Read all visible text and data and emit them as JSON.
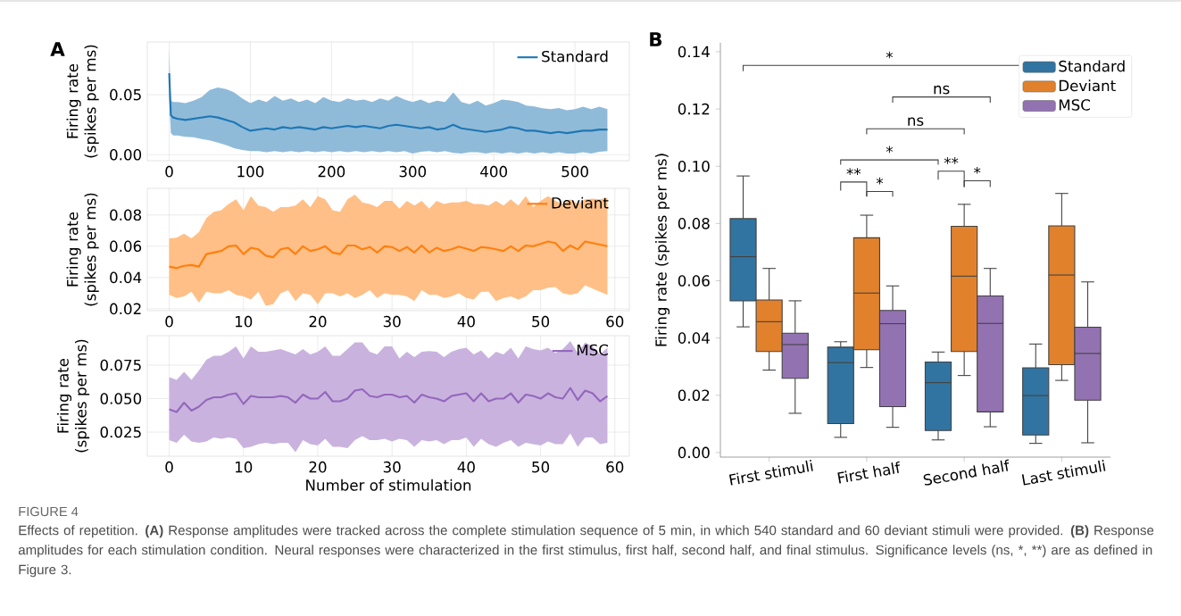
{
  "chart_data": [
    {
      "type": "line",
      "annotations": [
        "A"
      ],
      "ylabel": "Firing rate (spikes per ms)",
      "grid": true,
      "legend": "top right",
      "xlim": [
        -27,
        567
      ],
      "ylim": [
        -0.005,
        0.094
      ],
      "xticks": [
        0,
        100,
        200,
        300,
        400,
        500
      ],
      "yticks": [
        {
          "value": 0,
          "label": "0.00"
        },
        0.05
      ],
      "x": [
        0,
        2,
        5,
        10,
        20,
        30,
        40,
        50,
        60,
        70,
        80,
        90,
        100,
        110,
        120,
        130,
        140,
        150,
        160,
        170,
        180,
        190,
        200,
        210,
        220,
        230,
        240,
        250,
        260,
        270,
        280,
        290,
        300,
        310,
        320,
        330,
        340,
        350,
        360,
        370,
        380,
        390,
        400,
        410,
        420,
        430,
        440,
        450,
        460,
        470,
        480,
        490,
        500,
        510,
        520,
        530,
        540
      ],
      "series": [
        {
          "name": "Standard",
          "color": "#1f77b4",
          "values": [
            0.068,
            0.033,
            0.031,
            0.03,
            0.029,
            0.03,
            0.031,
            0.032,
            0.031,
            0.029,
            0.027,
            0.023,
            0.02,
            0.021,
            0.022,
            0.021,
            0.023,
            0.022,
            0.023,
            0.022,
            0.021,
            0.023,
            0.022,
            0.023,
            0.024,
            0.023,
            0.024,
            0.023,
            0.022,
            0.024,
            0.025,
            0.024,
            0.023,
            0.022,
            0.023,
            0.021,
            0.022,
            0.025,
            0.022,
            0.021,
            0.02,
            0.019,
            0.02,
            0.021,
            0.023,
            0.022,
            0.02,
            0.02,
            0.019,
            0.018,
            0.019,
            0.018,
            0.019,
            0.02,
            0.02,
            0.021,
            0.021
          ],
          "upper": [
            0.088,
            0.045,
            0.044,
            0.044,
            0.043,
            0.045,
            0.048,
            0.054,
            0.056,
            0.0548,
            0.052,
            0.047,
            0.043,
            0.046,
            0.044,
            0.049,
            0.045,
            0.047,
            0.044,
            0.046,
            0.043,
            0.048,
            0.045,
            0.044,
            0.047,
            0.045,
            0.046,
            0.044,
            0.047,
            0.045,
            0.049,
            0.046,
            0.044,
            0.046,
            0.043,
            0.045,
            0.044,
            0.052,
            0.044,
            0.042,
            0.045,
            0.041,
            0.043,
            0.046,
            0.0452,
            0.044,
            0.041,
            0.0403,
            0.0387,
            0.038,
            0.039,
            0.037,
            0.038,
            0.04,
            0.038,
            0.04,
            0.038
          ],
          "lower": [
            0.048,
            0.018,
            0.016,
            0.016,
            0.015,
            0.0145,
            0.013,
            0.012,
            0.01,
            0.008,
            0.0055,
            0.004,
            0.003,
            0.003,
            0.002,
            0.003,
            0.002,
            0.003,
            0.002,
            0.003,
            0.002,
            0.003,
            0.002,
            0.003,
            0.002,
            0.003,
            0.002,
            0.003,
            0.002,
            0.003,
            0.002,
            0.003,
            0.001,
            0.0025,
            0.003,
            0.002,
            0.003,
            0.0015,
            0.001,
            0.002,
            0.002,
            0.001,
            0.002,
            0.001,
            0.002,
            0.001,
            0.002,
            0.001,
            0.002,
            0.001,
            0.002,
            0.001,
            0.001,
            0.002,
            0.001,
            0.0025,
            0.003
          ]
        }
      ]
    },
    {
      "type": "line",
      "ylabel": "Firing rate (spikes per ms)",
      "grid": true,
      "legend": "top right",
      "xlim": [
        -2.95,
        61.95
      ],
      "ylim": [
        0.0188,
        0.097
      ],
      "xticks": [
        0,
        10,
        20,
        30,
        40,
        50,
        60
      ],
      "yticks": [
        0.02,
        0.04,
        0.06,
        0.08
      ],
      "x": [
        0,
        1,
        2,
        3,
        4,
        5,
        6,
        7,
        8,
        9,
        10,
        11,
        12,
        13,
        14,
        15,
        16,
        17,
        18,
        19,
        20,
        21,
        22,
        23,
        24,
        25,
        26,
        27,
        28,
        29,
        30,
        31,
        32,
        33,
        34,
        35,
        36,
        37,
        38,
        39,
        40,
        41,
        42,
        43,
        44,
        45,
        46,
        47,
        48,
        49,
        50,
        51,
        52,
        53,
        54,
        55,
        56,
        57,
        58,
        59
      ],
      "series": [
        {
          "name": "Deviant",
          "color": "#ff7f0e",
          "values": [
            0.047,
            0.046,
            0.0475,
            0.048,
            0.047,
            0.055,
            0.056,
            0.057,
            0.06,
            0.0605,
            0.055,
            0.059,
            0.058,
            0.054,
            0.053,
            0.058,
            0.059,
            0.055,
            0.06,
            0.057,
            0.058,
            0.06,
            0.056,
            0.055,
            0.0605,
            0.0605,
            0.058,
            0.0595,
            0.056,
            0.06,
            0.0595,
            0.057,
            0.0595,
            0.056,
            0.0605,
            0.056,
            0.059,
            0.057,
            0.058,
            0.0598,
            0.0585,
            0.057,
            0.0595,
            0.059,
            0.058,
            0.057,
            0.06,
            0.057,
            0.0605,
            0.06,
            0.0615,
            0.063,
            0.062,
            0.057,
            0.0605,
            0.058,
            0.063,
            0.062,
            0.061,
            0.06
          ],
          "upper": [
            0.065,
            0.0655,
            0.068,
            0.065,
            0.069,
            0.078,
            0.082,
            0.083,
            0.087,
            0.09,
            0.083,
            0.092,
            0.086,
            0.085,
            0.082,
            0.085,
            0.085,
            0.086,
            0.09,
            0.085,
            0.092,
            0.09,
            0.083,
            0.082,
            0.09,
            0.093,
            0.088,
            0.087,
            0.085,
            0.089,
            0.089,
            0.084,
            0.089,
            0.086,
            0.089,
            0.084,
            0.089,
            0.087,
            0.088,
            0.088,
            0.089,
            0.087,
            0.087,
            0.086,
            0.089,
            0.086,
            0.09,
            0.086,
            0.092,
            0.085,
            0.089,
            0.092,
            0.089,
            0.087,
            0.09,
            0.087,
            0.09,
            0.0905,
            0.09,
            0.091
          ],
          "lower": [
            0.029,
            0.027,
            0.028,
            0.031,
            0.024,
            0.031,
            0.03,
            0.03,
            0.032,
            0.029,
            0.028,
            0.026,
            0.031,
            0.022,
            0.023,
            0.03,
            0.032,
            0.025,
            0.03,
            0.029,
            0.023,
            0.03,
            0.03,
            0.028,
            0.03,
            0.027,
            0.029,
            0.032,
            0.027,
            0.03,
            0.029,
            0.029,
            0.028,
            0.025,
            0.032,
            0.029,
            0.029,
            0.027,
            0.028,
            0.03,
            0.027,
            0.026,
            0.031,
            0.031,
            0.025,
            0.027,
            0.028,
            0.026,
            0.028,
            0.032,
            0.032,
            0.0335,
            0.034,
            0.03,
            0.029,
            0.03,
            0.035,
            0.033,
            0.031,
            0.029
          ]
        }
      ]
    },
    {
      "type": "line",
      "xlabel": "Number of stimulation",
      "ylabel": "Firing rate (spikes per ms)",
      "grid": true,
      "legend": "top right",
      "xlim": [
        -2.95,
        61.95
      ],
      "ylim": [
        0.007,
        0.097
      ],
      "xticks": [
        0,
        10,
        20,
        30,
        40,
        50,
        60
      ],
      "yticks": [
        {
          "value": 0.025,
          "label": "0.025"
        },
        {
          "value": 0.05,
          "label": "0.050"
        },
        {
          "value": 0.075,
          "label": "0.075"
        }
      ],
      "x": [
        0,
        1,
        2,
        3,
        4,
        5,
        6,
        7,
        8,
        9,
        10,
        11,
        12,
        13,
        14,
        15,
        16,
        17,
        18,
        19,
        20,
        21,
        22,
        23,
        24,
        25,
        26,
        27,
        28,
        29,
        30,
        31,
        32,
        33,
        34,
        35,
        36,
        37,
        38,
        39,
        40,
        41,
        42,
        43,
        44,
        45,
        46,
        47,
        48,
        49,
        50,
        51,
        52,
        53,
        54,
        55,
        56,
        57,
        58,
        59
      ],
      "series": [
        {
          "name": "MSC",
          "color": "#9467bd",
          "values": [
            0.042,
            0.04,
            0.047,
            0.041,
            0.044,
            0.049,
            0.051,
            0.051,
            0.053,
            0.054,
            0.046,
            0.052,
            0.051,
            0.051,
            0.051,
            0.052,
            0.051,
            0.047,
            0.053,
            0.05,
            0.05,
            0.055,
            0.048,
            0.048,
            0.05,
            0.056,
            0.057,
            0.052,
            0.051,
            0.053,
            0.053,
            0.051,
            0.052,
            0.047,
            0.053,
            0.051,
            0.05,
            0.048,
            0.052,
            0.053,
            0.054,
            0.048,
            0.054,
            0.048,
            0.05,
            0.05,
            0.054,
            0.047,
            0.053,
            0.052,
            0.05,
            0.054,
            0.051,
            0.05,
            0.058,
            0.049,
            0.056,
            0.054,
            0.048,
            0.052
          ],
          "upper": [
            0.066,
            0.064,
            0.07,
            0.064,
            0.071,
            0.079,
            0.082,
            0.082,
            0.085,
            0.089,
            0.08,
            0.089,
            0.085,
            0.085,
            0.086,
            0.087,
            0.085,
            0.083,
            0.087,
            0.083,
            0.085,
            0.089,
            0.082,
            0.082,
            0.087,
            0.092,
            0.092,
            0.085,
            0.083,
            0.089,
            0.089,
            0.08,
            0.085,
            0.081,
            0.085,
            0.0855,
            0.085,
            0.081,
            0.085,
            0.087,
            0.088,
            0.083,
            0.086,
            0.08,
            0.085,
            0.083,
            0.088,
            0.08,
            0.089,
            0.087,
            0.086,
            0.088,
            0.084,
            0.087,
            0.093,
            0.084,
            0.092,
            0.089,
            0.083,
            0.088
          ],
          "lower": [
            0.019,
            0.017,
            0.023,
            0.018,
            0.017,
            0.018,
            0.021,
            0.02,
            0.021,
            0.02,
            0.013,
            0.014,
            0.016,
            0.017,
            0.016,
            0.017,
            0.017,
            0.01,
            0.019,
            0.016,
            0.015,
            0.02,
            0.014,
            0.014,
            0.013,
            0.019,
            0.022,
            0.019,
            0.019,
            0.02,
            0.018,
            0.02,
            0.019,
            0.014,
            0.019,
            0.018,
            0.019,
            0.016,
            0.019,
            0.019,
            0.021,
            0.014,
            0.02,
            0.016,
            0.014,
            0.017,
            0.019,
            0.014,
            0.017,
            0.016,
            0.015,
            0.018,
            0.016,
            0.016,
            0.024,
            0.014,
            0.021,
            0.021,
            0.016,
            0.017
          ]
        }
      ]
    },
    {
      "type": "box",
      "ylabel": "Firing rate (spikes per ms)",
      "legend": "top right",
      "ylim": [
        -0.0016,
        0.1431
      ],
      "yticks": [
        {
          "value": 0,
          "label": "0.00"
        },
        0.02,
        0.04,
        0.06,
        0.08,
        {
          "value": 0.1,
          "label": "0.10"
        },
        0.12,
        0.14
      ],
      "categories": [
        "First stimuli",
        "First half",
        "Second half",
        "Last stimuli"
      ],
      "annotations": [
        "B",
        "*",
        "ns",
        "ns",
        "*",
        "**",
        "*",
        "**",
        "*",
        "FIGURE 4",
        "Effects of repetition. **(A)** Response amplitudes were tracked across the complete stimulation sequence of 5 min, in which 540 standard and 60 deviant stimuli were provided. **(B)** Response amplitudes for each stimulation condition. Neural responses were characterized in the first stimulus, first half, second half, and final stimulus. Significance levels (ns, *, **) are as defined in Figure 3."
      ],
      "series": [
        {
          "name": "Standard",
          "color": "#3274a1",
          "boxes": [
            {
              "low": 0.0439,
              "q1": 0.053,
              "median": 0.0684,
              "q3": 0.0817,
              "high": 0.0966
            },
            {
              "low": 0.0053,
              "q1": 0.0101,
              "median": 0.0314,
              "q3": 0.0368,
              "high": 0.0387
            },
            {
              "low": 0.0044,
              "q1": 0.0077,
              "median": 0.0244,
              "q3": 0.0316,
              "high": 0.0351
            },
            {
              "low": 0.0032,
              "q1": 0.0061,
              "median": 0.0199,
              "q3": 0.0296,
              "high": 0.0379
            }
          ]
        },
        {
          "name": "Deviant",
          "color": "#e1812c",
          "boxes": [
            {
              "low": 0.0288,
              "q1": 0.0353,
              "median": 0.0457,
              "q3": 0.0533,
              "high": 0.0643
            },
            {
              "low": 0.0297,
              "q1": 0.0359,
              "median": 0.0557,
              "q3": 0.075,
              "high": 0.0829
            },
            {
              "low": 0.0269,
              "q1": 0.0353,
              "median": 0.0616,
              "q3": 0.079,
              "high": 0.0867
            },
            {
              "low": 0.0252,
              "q1": 0.0307,
              "median": 0.062,
              "q3": 0.0792,
              "high": 0.0905
            }
          ]
        },
        {
          "name": "MSC",
          "color": "#9372b2",
          "boxes": [
            {
              "low": 0.0137,
              "q1": 0.0259,
              "median": 0.0377,
              "q3": 0.0417,
              "high": 0.053
            },
            {
              "low": 0.0088,
              "q1": 0.016,
              "median": 0.045,
              "q3": 0.0496,
              "high": 0.0582
            },
            {
              "low": 0.009,
              "q1": 0.0142,
              "median": 0.0451,
              "q3": 0.0547,
              "high": 0.0643
            },
            {
              "low": 0.0034,
              "q1": 0.0183,
              "median": 0.0346,
              "q3": 0.0438,
              "high": 0.0596
            }
          ]
        }
      ]
    }
  ]
}
